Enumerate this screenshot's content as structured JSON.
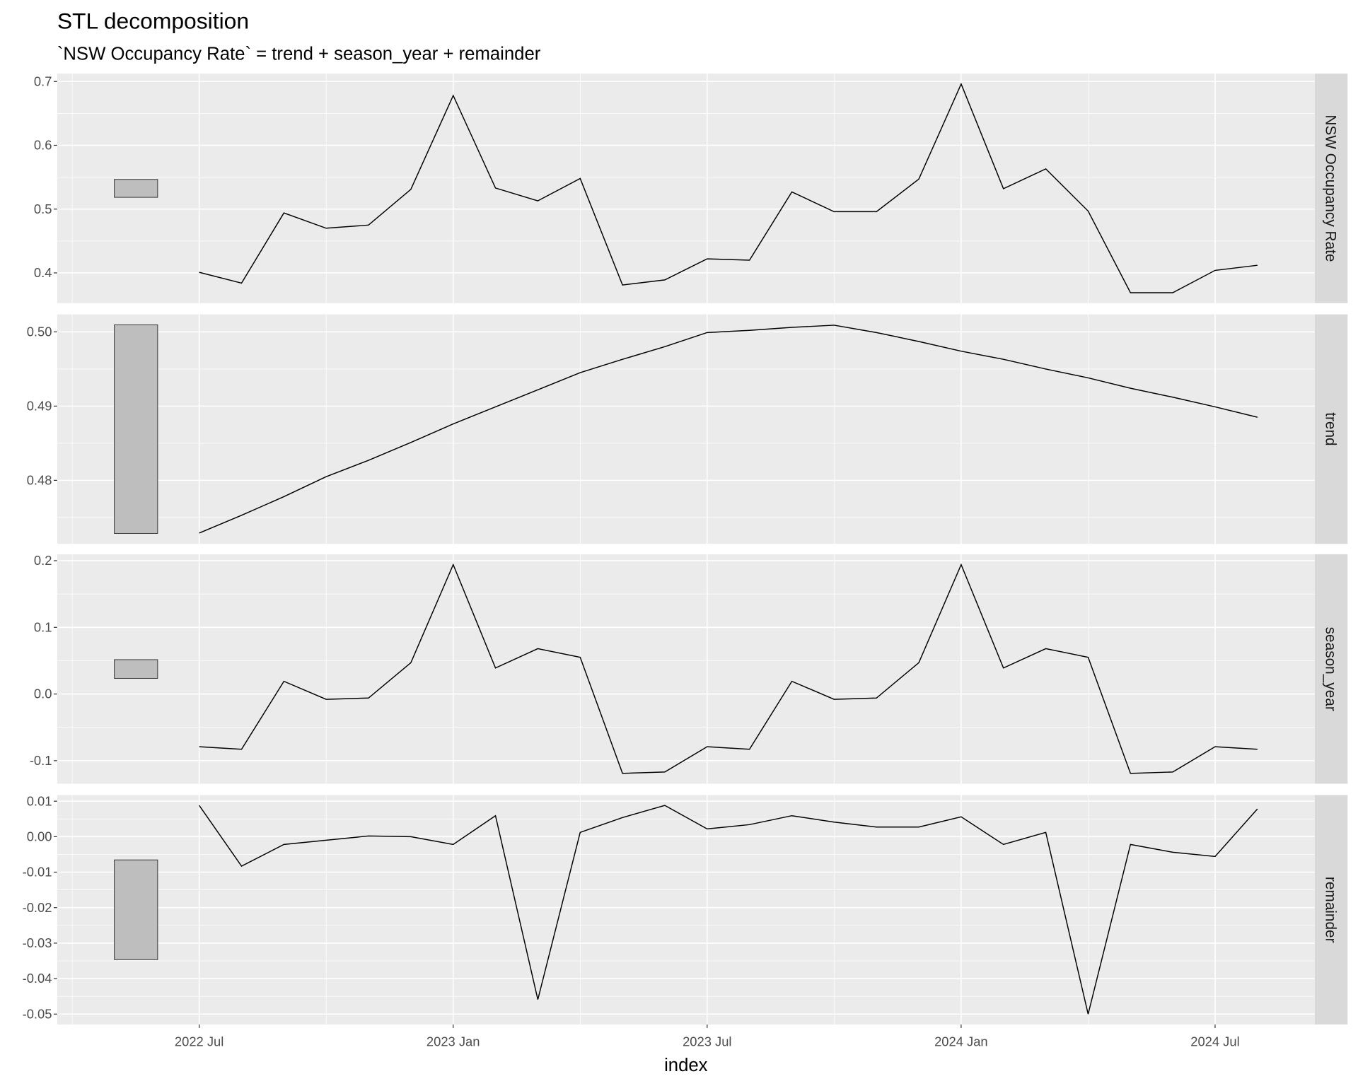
{
  "chart_data": {
    "type": "line",
    "title": "STL decomposition",
    "subtitle": "`NSW Occupancy Rate` = trend + season_year + remainder",
    "xlabel": "index",
    "x_start": "2022 Jul",
    "x_ticks": [
      {
        "label": "2022 Jul",
        "month": 0
      },
      {
        "label": "2023 Jan",
        "month": 6
      },
      {
        "label": "2023 Jul",
        "month": 12
      },
      {
        "label": "2024 Jan",
        "month": 18
      },
      {
        "label": "2024 Jul",
        "month": 24
      }
    ],
    "x": [
      "2022 Jul",
      "2022 Aug",
      "2022 Sep",
      "2022 Oct",
      "2022 Nov",
      "2022 Dec",
      "2023 Jan",
      "2023 Feb",
      "2023 Mar",
      "2023 Apr",
      "2023 May",
      "2023 Jun",
      "2023 Jul",
      "2023 Aug",
      "2023 Sep",
      "2023 Oct",
      "2023 Nov",
      "2023 Dec",
      "2024 Jan",
      "2024 Feb",
      "2024 Mar",
      "2024 Apr",
      "2024 May",
      "2024 Jun",
      "2024 Jul",
      "2024 Aug"
    ],
    "scale_bar_range": 0.0281,
    "grid": true,
    "line_color": "#000000",
    "panel_background": "#ebebeb",
    "strip_background": "#d9d9d9",
    "scale_bar_color": "#bebebe",
    "panels": [
      {
        "name": "NSW Occupancy Rate",
        "ticks": [
          0.4,
          0.5,
          0.6,
          0.7
        ],
        "tick_labels": [
          "0.4",
          "0.5",
          "0.6",
          "0.7"
        ],
        "values": [
          0.401,
          0.384,
          0.494,
          0.47,
          0.475,
          0.531,
          0.678,
          0.533,
          0.513,
          0.548,
          0.381,
          0.389,
          0.422,
          0.42,
          0.527,
          0.496,
          0.496,
          0.547,
          0.696,
          0.532,
          0.563,
          0.497,
          0.369,
          0.369,
          0.404,
          0.412
        ]
      },
      {
        "name": "trend",
        "ticks": [
          0.48,
          0.49,
          0.5
        ],
        "tick_labels": [
          "0.48",
          "0.49",
          "0.50"
        ],
        "values": [
          0.4729,
          0.4753,
          0.4778,
          0.4805,
          0.4827,
          0.4851,
          0.4876,
          0.4899,
          0.4922,
          0.4945,
          0.4963,
          0.498,
          0.4999,
          0.5002,
          0.5006,
          0.5009,
          0.4999,
          0.4987,
          0.4974,
          0.4963,
          0.495,
          0.4938,
          0.4924,
          0.4912,
          0.4899,
          0.4885
        ]
      },
      {
        "name": "season_year",
        "ticks": [
          -0.1,
          0.0,
          0.1,
          0.2
        ],
        "tick_labels": [
          "-0.1",
          "0.0",
          "0.1",
          "0.2"
        ],
        "values": [
          -0.079,
          -0.083,
          0.019,
          -0.008,
          -0.006,
          0.047,
          0.194,
          0.039,
          0.068,
          0.055,
          -0.119,
          -0.117,
          -0.079,
          -0.083,
          0.019,
          -0.008,
          -0.006,
          0.047,
          0.194,
          0.039,
          0.068,
          0.055,
          -0.119,
          -0.117,
          -0.079,
          -0.083
        ]
      },
      {
        "name": "remainder",
        "ticks": [
          -0.05,
          -0.04,
          -0.03,
          -0.02,
          -0.01,
          0.0,
          0.01
        ],
        "tick_labels": [
          "-0.05",
          "-0.04",
          "-0.03",
          "-0.02",
          "-0.01",
          "0.00",
          "0.01"
        ],
        "values": [
          0.0088,
          -0.0083,
          -0.0022,
          -0.001,
          0.0002,
          0.0,
          -0.0022,
          0.0059,
          -0.0459,
          0.0012,
          0.0054,
          0.0088,
          0.0022,
          0.0034,
          0.0059,
          0.0041,
          0.0027,
          0.0027,
          0.0056,
          -0.0022,
          0.0012,
          -0.05,
          -0.0022,
          -0.0044,
          -0.0056,
          0.0078
        ]
      }
    ]
  }
}
